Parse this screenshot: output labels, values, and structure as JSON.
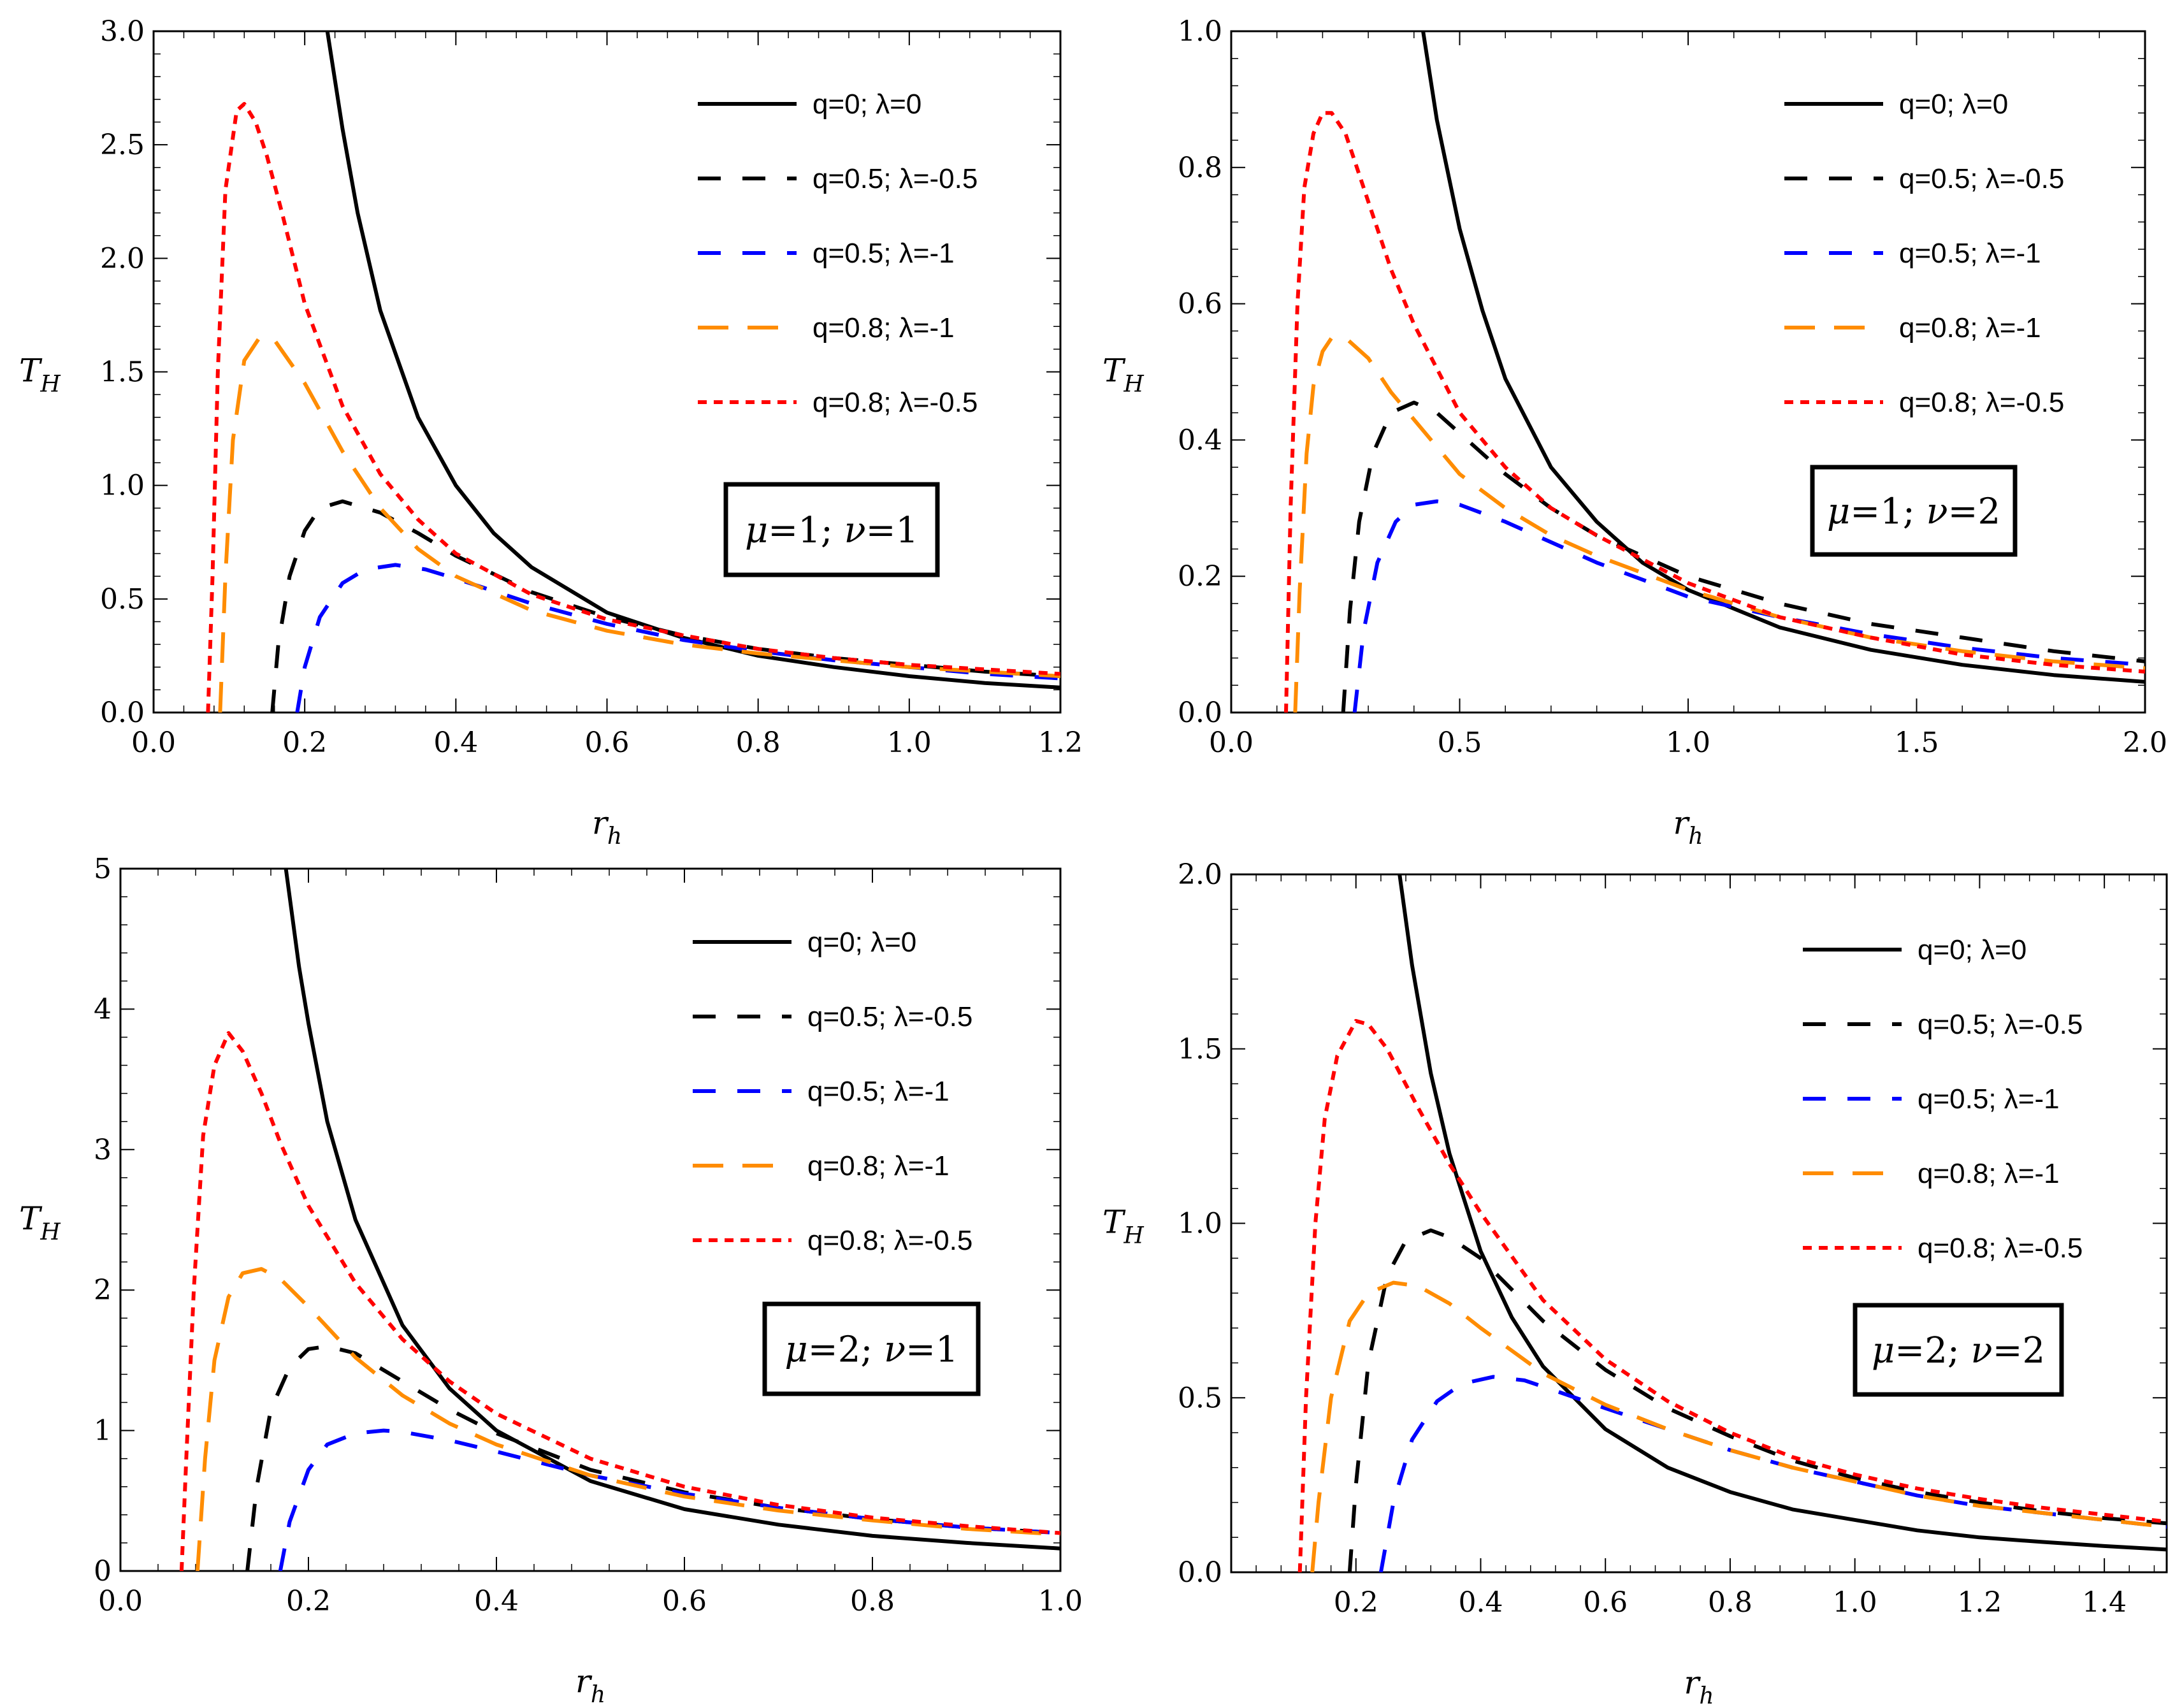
{
  "chart_data": [
    {
      "type": "line",
      "title": "",
      "xlabel": "r_h",
      "ylabel": "T_H",
      "xlim": [
        0.0,
        1.2
      ],
      "ylim": [
        0.0,
        3.0
      ],
      "x_ticks": [
        "0.0",
        "0.2",
        "0.4",
        "0.6",
        "0.8",
        "1.0",
        "1.2"
      ],
      "y_ticks": [
        "0.0",
        "0.5",
        "1.0",
        "1.5",
        "2.0",
        "2.5",
        "3.0"
      ],
      "annotation": {
        "mu": "1",
        "nu": "1"
      },
      "legend_position": "top-right",
      "series": [
        {
          "name": "q=0; λ=0",
          "color": "#000000",
          "style": "solid",
          "x": [
            0.23,
            0.25,
            0.27,
            0.3,
            0.35,
            0.4,
            0.45,
            0.5,
            0.6,
            0.7,
            0.8,
            0.9,
            1.0,
            1.1,
            1.2
          ],
          "y": [
            3.0,
            2.57,
            2.2,
            1.77,
            1.3,
            1.0,
            0.79,
            0.64,
            0.44,
            0.33,
            0.25,
            0.2,
            0.16,
            0.13,
            0.11
          ]
        },
        {
          "name": "q=0.5; λ=-0.5",
          "color": "#000000",
          "style": "dash",
          "x": [
            0.157,
            0.165,
            0.18,
            0.2,
            0.22,
            0.25,
            0.3,
            0.35,
            0.4,
            0.5,
            0.6,
            0.7,
            0.8,
            0.9,
            1.0,
            1.1,
            1.2
          ],
          "y": [
            0.0,
            0.3,
            0.6,
            0.8,
            0.9,
            0.93,
            0.88,
            0.79,
            0.69,
            0.53,
            0.42,
            0.34,
            0.28,
            0.24,
            0.21,
            0.18,
            0.16
          ]
        },
        {
          "name": "q=0.5; λ=-1",
          "color": "#0000ff",
          "style": "dash",
          "x": [
            0.19,
            0.2,
            0.22,
            0.25,
            0.28,
            0.32,
            0.36,
            0.4,
            0.5,
            0.6,
            0.7,
            0.8,
            0.9,
            1.0,
            1.1,
            1.2
          ],
          "y": [
            0.0,
            0.2,
            0.42,
            0.57,
            0.63,
            0.65,
            0.63,
            0.59,
            0.48,
            0.39,
            0.32,
            0.27,
            0.23,
            0.2,
            0.17,
            0.15
          ]
        },
        {
          "name": "q=0.8; λ=-1",
          "color": "#ff8c00",
          "style": "longdash",
          "x": [
            0.088,
            0.095,
            0.105,
            0.12,
            0.14,
            0.16,
            0.2,
            0.25,
            0.3,
            0.35,
            0.4,
            0.5,
            0.6,
            0.7,
            0.8,
            0.9,
            1.0,
            1.1,
            1.2
          ],
          "y": [
            0.0,
            0.6,
            1.2,
            1.55,
            1.65,
            1.64,
            1.45,
            1.15,
            0.9,
            0.72,
            0.6,
            0.45,
            0.36,
            0.3,
            0.26,
            0.23,
            0.2,
            0.18,
            0.16
          ]
        },
        {
          "name": "q=0.8; λ=-0.5",
          "color": "#ff0000",
          "style": "dot",
          "x": [
            0.072,
            0.078,
            0.085,
            0.095,
            0.11,
            0.12,
            0.135,
            0.15,
            0.17,
            0.2,
            0.25,
            0.3,
            0.35,
            0.4,
            0.5,
            0.6,
            0.7,
            0.8,
            0.9,
            1.0,
            1.1,
            1.2
          ],
          "y": [
            0.0,
            0.6,
            1.5,
            2.3,
            2.65,
            2.68,
            2.6,
            2.45,
            2.2,
            1.8,
            1.35,
            1.05,
            0.85,
            0.7,
            0.52,
            0.41,
            0.34,
            0.28,
            0.24,
            0.21,
            0.19,
            0.17
          ]
        }
      ]
    },
    {
      "type": "line",
      "title": "",
      "xlabel": "r_h",
      "ylabel": "T_H",
      "xlim": [
        0.0,
        2.0
      ],
      "ylim": [
        0.0,
        1.0
      ],
      "x_ticks": [
        "0.0",
        "0.5",
        "1.0",
        "1.5",
        "2.0"
      ],
      "y_ticks": [
        "0.0",
        "0.2",
        "0.4",
        "0.6",
        "0.8",
        "1.0"
      ],
      "annotation": {
        "mu": "1",
        "nu": "2"
      },
      "legend_position": "top-right",
      "series": [
        {
          "name": "q=0; λ=0",
          "color": "#000000",
          "style": "solid",
          "x": [
            0.42,
            0.45,
            0.5,
            0.55,
            0.6,
            0.7,
            0.8,
            0.9,
            1.0,
            1.2,
            1.4,
            1.6,
            1.8,
            2.0
          ],
          "y": [
            1.0,
            0.87,
            0.71,
            0.59,
            0.49,
            0.36,
            0.28,
            0.22,
            0.18,
            0.125,
            0.092,
            0.07,
            0.055,
            0.045
          ]
        },
        {
          "name": "q=0.5; λ=-0.5",
          "color": "#000000",
          "style": "dash",
          "x": [
            0.245,
            0.26,
            0.28,
            0.31,
            0.35,
            0.4,
            0.45,
            0.5,
            0.6,
            0.7,
            0.8,
            1.0,
            1.2,
            1.4,
            1.6,
            1.8,
            2.0
          ],
          "y": [
            0.0,
            0.15,
            0.28,
            0.38,
            0.44,
            0.455,
            0.44,
            0.41,
            0.35,
            0.3,
            0.26,
            0.2,
            0.16,
            0.13,
            0.11,
            0.09,
            0.075
          ]
        },
        {
          "name": "q=0.5; λ=-1",
          "color": "#0000ff",
          "style": "dash",
          "x": [
            0.27,
            0.29,
            0.32,
            0.36,
            0.4,
            0.45,
            0.5,
            0.6,
            0.7,
            0.8,
            1.0,
            1.2,
            1.4,
            1.6,
            1.8,
            2.0
          ],
          "y": [
            0.0,
            0.12,
            0.22,
            0.28,
            0.305,
            0.31,
            0.305,
            0.28,
            0.25,
            0.22,
            0.17,
            0.14,
            0.115,
            0.095,
            0.08,
            0.07
          ]
        },
        {
          "name": "q=0.8; λ=-1",
          "color": "#ff8c00",
          "style": "longdash",
          "x": [
            0.14,
            0.15,
            0.165,
            0.18,
            0.2,
            0.22,
            0.25,
            0.3,
            0.35,
            0.4,
            0.5,
            0.6,
            0.7,
            0.8,
            1.0,
            1.2,
            1.4,
            1.6,
            1.8,
            2.0
          ],
          "y": [
            0.0,
            0.18,
            0.38,
            0.48,
            0.53,
            0.55,
            0.55,
            0.52,
            0.47,
            0.43,
            0.35,
            0.3,
            0.26,
            0.23,
            0.18,
            0.14,
            0.11,
            0.09,
            0.075,
            0.065
          ]
        },
        {
          "name": "q=0.8; λ=-0.5",
          "color": "#ff0000",
          "style": "dot",
          "x": [
            0.12,
            0.13,
            0.145,
            0.16,
            0.18,
            0.2,
            0.22,
            0.25,
            0.3,
            0.35,
            0.4,
            0.5,
            0.6,
            0.7,
            0.8,
            1.0,
            1.2,
            1.4,
            1.6,
            1.8,
            2.0
          ],
          "y": [
            0.0,
            0.3,
            0.6,
            0.77,
            0.85,
            0.88,
            0.88,
            0.85,
            0.75,
            0.65,
            0.57,
            0.44,
            0.36,
            0.3,
            0.26,
            0.19,
            0.14,
            0.11,
            0.085,
            0.07,
            0.06
          ]
        }
      ]
    },
    {
      "type": "line",
      "title": "",
      "xlabel": "r_h",
      "ylabel": "T_H",
      "xlim": [
        0.0,
        1.0
      ],
      "ylim": [
        0,
        5
      ],
      "x_ticks": [
        "0.0",
        "0.2",
        "0.4",
        "0.6",
        "0.8",
        "1.0"
      ],
      "y_ticks": [
        "0",
        "1",
        "2",
        "3",
        "4",
        "5"
      ],
      "annotation": {
        "mu": "2",
        "nu": "1"
      },
      "legend_position": "top-right",
      "series": [
        {
          "name": "q=0; λ=0",
          "color": "#000000",
          "style": "solid",
          "x": [
            0.176,
            0.19,
            0.2,
            0.22,
            0.25,
            0.3,
            0.35,
            0.4,
            0.5,
            0.6,
            0.7,
            0.8,
            0.9,
            1.0
          ],
          "y": [
            5.0,
            4.3,
            3.9,
            3.2,
            2.5,
            1.75,
            1.3,
            1.0,
            0.64,
            0.44,
            0.33,
            0.25,
            0.2,
            0.16
          ]
        },
        {
          "name": "q=0.5; λ=-0.5",
          "color": "#000000",
          "style": "dash",
          "x": [
            0.135,
            0.145,
            0.16,
            0.18,
            0.2,
            0.22,
            0.25,
            0.3,
            0.35,
            0.4,
            0.5,
            0.6,
            0.7,
            0.8,
            0.9,
            1.0
          ],
          "y": [
            0.0,
            0.6,
            1.15,
            1.45,
            1.58,
            1.6,
            1.55,
            1.35,
            1.15,
            0.98,
            0.72,
            0.56,
            0.45,
            0.37,
            0.31,
            0.27
          ]
        },
        {
          "name": "q=0.5; λ=-1",
          "color": "#0000ff",
          "style": "dash",
          "x": [
            0.17,
            0.18,
            0.2,
            0.22,
            0.25,
            0.28,
            0.3,
            0.35,
            0.4,
            0.5,
            0.6,
            0.7,
            0.8,
            0.9,
            1.0
          ],
          "y": [
            0.0,
            0.35,
            0.72,
            0.9,
            0.98,
            1.0,
            0.99,
            0.93,
            0.85,
            0.68,
            0.55,
            0.45,
            0.37,
            0.31,
            0.27
          ]
        },
        {
          "name": "q=0.8; λ=-1",
          "color": "#ff8c00",
          "style": "longdash",
          "x": [
            0.082,
            0.09,
            0.1,
            0.115,
            0.13,
            0.15,
            0.17,
            0.2,
            0.25,
            0.3,
            0.35,
            0.4,
            0.5,
            0.6,
            0.7,
            0.8,
            0.9,
            1.0
          ],
          "y": [
            0.0,
            0.8,
            1.5,
            1.95,
            2.12,
            2.15,
            2.08,
            1.88,
            1.52,
            1.25,
            1.05,
            0.9,
            0.68,
            0.53,
            0.43,
            0.36,
            0.3,
            0.26
          ]
        },
        {
          "name": "q=0.8; λ=-0.5",
          "color": "#ff0000",
          "style": "dot",
          "x": [
            0.065,
            0.07,
            0.078,
            0.088,
            0.1,
            0.115,
            0.13,
            0.15,
            0.17,
            0.2,
            0.25,
            0.3,
            0.35,
            0.4,
            0.5,
            0.6,
            0.7,
            0.8,
            0.9,
            1.0
          ],
          "y": [
            0.0,
            0.8,
            2.0,
            3.1,
            3.6,
            3.83,
            3.7,
            3.4,
            3.05,
            2.6,
            2.05,
            1.65,
            1.35,
            1.12,
            0.8,
            0.6,
            0.47,
            0.38,
            0.32,
            0.27
          ]
        }
      ]
    },
    {
      "type": "line",
      "title": "",
      "xlabel": "r_h",
      "ylabel": "T_H",
      "xlim": [
        0.0,
        1.5
      ],
      "ylim": [
        0.0,
        2.0
      ],
      "x_ticks": [
        "0.2",
        "0.4",
        "0.6",
        "0.8",
        "1.0",
        "1.2",
        "1.4"
      ],
      "y_ticks": [
        "0.0",
        "0.5",
        "1.0",
        "1.5",
        "2.0"
      ],
      "annotation": {
        "mu": "2",
        "nu": "2"
      },
      "legend_position": "top-right",
      "series": [
        {
          "name": "q=0; λ=0",
          "color": "#000000",
          "style": "solid",
          "x": [
            0.27,
            0.29,
            0.32,
            0.35,
            0.4,
            0.45,
            0.5,
            0.6,
            0.7,
            0.8,
            0.9,
            1.0,
            1.1,
            1.2,
            1.3,
            1.4,
            1.5
          ],
          "y": [
            2.0,
            1.74,
            1.43,
            1.2,
            0.92,
            0.73,
            0.59,
            0.41,
            0.3,
            0.23,
            0.18,
            0.15,
            0.12,
            0.1,
            0.087,
            0.075,
            0.065
          ]
        },
        {
          "name": "q=0.5; λ=-0.5",
          "color": "#000000",
          "style": "dash",
          "x": [
            0.19,
            0.2,
            0.22,
            0.25,
            0.28,
            0.32,
            0.35,
            0.4,
            0.5,
            0.6,
            0.7,
            0.8,
            0.9,
            1.0,
            1.1,
            1.2,
            1.3,
            1.4,
            1.5
          ],
          "y": [
            0.0,
            0.25,
            0.6,
            0.85,
            0.95,
            0.98,
            0.96,
            0.9,
            0.72,
            0.58,
            0.47,
            0.39,
            0.32,
            0.27,
            0.23,
            0.2,
            0.175,
            0.155,
            0.14
          ]
        },
        {
          "name": "q=0.5; λ=-1",
          "color": "#0000ff",
          "style": "dash",
          "x": [
            0.24,
            0.26,
            0.29,
            0.33,
            0.37,
            0.42,
            0.47,
            0.52,
            0.6,
            0.7,
            0.8,
            0.9,
            1.0,
            1.1,
            1.2,
            1.3,
            1.4,
            1.5
          ],
          "y": [
            0.0,
            0.2,
            0.38,
            0.49,
            0.54,
            0.56,
            0.55,
            0.52,
            0.47,
            0.41,
            0.35,
            0.3,
            0.26,
            0.22,
            0.19,
            0.17,
            0.15,
            0.13
          ]
        },
        {
          "name": "q=0.8; λ=-1",
          "color": "#ff8c00",
          "style": "longdash",
          "x": [
            0.13,
            0.14,
            0.16,
            0.19,
            0.22,
            0.26,
            0.3,
            0.35,
            0.4,
            0.5,
            0.6,
            0.7,
            0.8,
            0.9,
            1.0,
            1.1,
            1.2,
            1.3,
            1.4,
            1.5
          ],
          "y": [
            0.0,
            0.2,
            0.5,
            0.72,
            0.8,
            0.83,
            0.82,
            0.77,
            0.7,
            0.57,
            0.48,
            0.41,
            0.35,
            0.3,
            0.26,
            0.22,
            0.19,
            0.17,
            0.15,
            0.13
          ]
        },
        {
          "name": "q=0.8; λ=-0.5",
          "color": "#ff0000",
          "style": "dot",
          "x": [
            0.11,
            0.12,
            0.135,
            0.15,
            0.17,
            0.2,
            0.22,
            0.25,
            0.3,
            0.35,
            0.4,
            0.5,
            0.6,
            0.7,
            0.8,
            0.9,
            1.0,
            1.1,
            1.2,
            1.3,
            1.4,
            1.5
          ],
          "y": [
            0.0,
            0.5,
            1.0,
            1.3,
            1.48,
            1.58,
            1.57,
            1.5,
            1.33,
            1.17,
            1.03,
            0.78,
            0.61,
            0.49,
            0.4,
            0.33,
            0.28,
            0.24,
            0.21,
            0.185,
            0.165,
            0.145
          ]
        }
      ]
    }
  ]
}
